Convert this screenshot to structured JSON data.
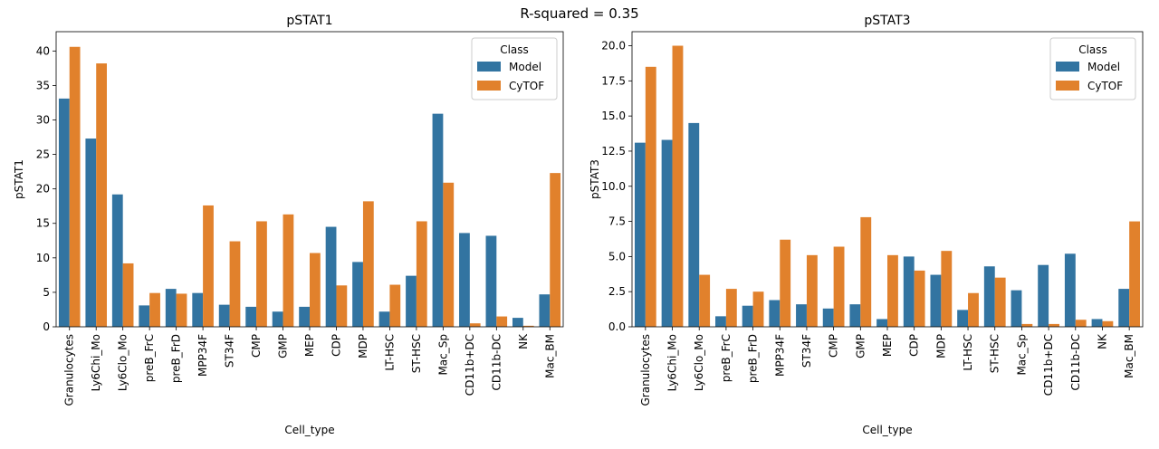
{
  "suptitle": "R-squared = 0.35",
  "colors": {
    "model": "#3274a1",
    "cytof": "#e1812c"
  },
  "chart_data": [
    {
      "type": "bar",
      "title": "pSTAT1",
      "xlabel": "Cell_type",
      "ylabel": "pSTAT1",
      "ylim": [
        0,
        42.8
      ],
      "yticks": [
        0,
        5,
        10,
        15,
        20,
        25,
        30,
        35,
        40
      ],
      "ytick_labels": [
        "0",
        "5",
        "10",
        "15",
        "20",
        "25",
        "30",
        "35",
        "40"
      ],
      "legend": {
        "title": "Class",
        "placement": "top-right"
      },
      "categories": [
        "Granulocytes",
        "Ly6Chi_Mo",
        "Ly6Clo_Mo",
        "preB_FrC",
        "preB_FrD",
        "MPP34F",
        "ST34F",
        "CMP",
        "GMP",
        "MEP",
        "CDP",
        "MDP",
        "LT-HSC",
        "ST-HSC",
        "Mac_Sp",
        "CD11b+DC",
        "CD11b-DC",
        "NK",
        "Mac_BM"
      ],
      "series": [
        {
          "name": "Model",
          "values": [
            33.1,
            27.3,
            19.2,
            3.1,
            5.5,
            4.9,
            3.2,
            2.9,
            2.2,
            2.9,
            14.5,
            9.4,
            2.2,
            7.4,
            30.9,
            13.6,
            13.2,
            1.3,
            4.7
          ]
        },
        {
          "name": "CyTOF",
          "values": [
            40.6,
            38.2,
            9.2,
            4.9,
            4.8,
            17.6,
            12.4,
            15.3,
            16.3,
            10.7,
            6.0,
            18.2,
            6.1,
            15.3,
            20.9,
            0.5,
            1.5,
            0.15,
            22.3
          ]
        }
      ]
    },
    {
      "type": "bar",
      "title": "pSTAT3",
      "xlabel": "Cell_type",
      "ylabel": "pSTAT3",
      "ylim": [
        0,
        21.0
      ],
      "yticks": [
        0,
        2.5,
        5,
        7.5,
        10,
        12.5,
        15,
        17.5,
        20
      ],
      "ytick_labels": [
        "0.0",
        "2.5",
        "5.0",
        "7.5",
        "10.0",
        "12.5",
        "15.0",
        "17.5",
        "20.0"
      ],
      "legend": {
        "title": "Class",
        "placement": "top-right"
      },
      "categories": [
        "Granulocytes",
        "Ly6Chi_Mo",
        "Ly6Clo_Mo",
        "preB_FrC",
        "preB_FrD",
        "MPP34F",
        "ST34F",
        "CMP",
        "GMP",
        "MEP",
        "CDP",
        "MDP",
        "LT-HSC",
        "ST-HSC",
        "Mac_Sp",
        "CD11b+DC",
        "CD11b-DC",
        "NK",
        "Mac_BM"
      ],
      "series": [
        {
          "name": "Model",
          "values": [
            13.1,
            13.3,
            14.5,
            0.75,
            1.5,
            1.9,
            1.6,
            1.3,
            1.6,
            0.55,
            5.0,
            3.7,
            1.2,
            4.3,
            2.6,
            4.4,
            5.2,
            0.55,
            2.7
          ]
        },
        {
          "name": "CyTOF",
          "values": [
            18.5,
            20.0,
            3.7,
            2.7,
            2.5,
            6.2,
            5.1,
            5.7,
            7.8,
            5.1,
            4.0,
            5.4,
            2.4,
            3.5,
            0.2,
            0.2,
            0.5,
            0.4,
            7.5
          ]
        }
      ]
    }
  ]
}
